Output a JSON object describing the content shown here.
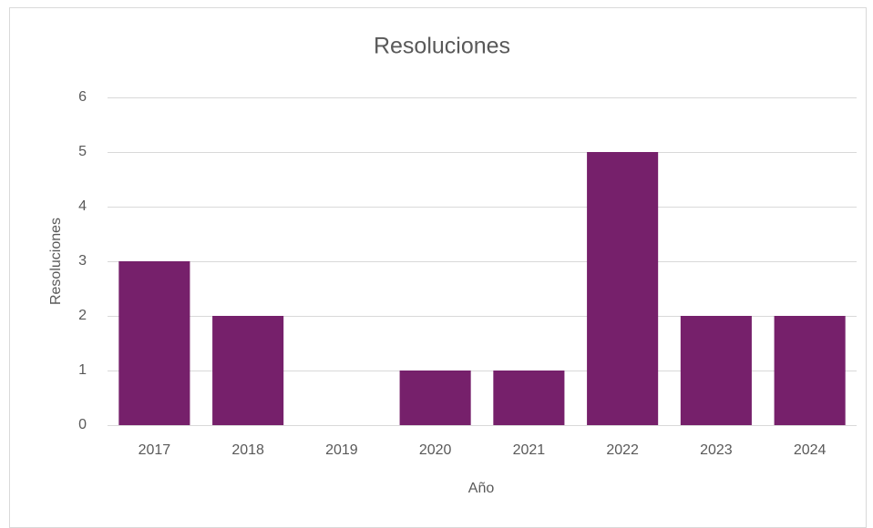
{
  "chart_data": {
    "type": "bar",
    "title": "Resoluciones",
    "categories": [
      "2017",
      "2018",
      "2019",
      "2020",
      "2021",
      "2022",
      "2023",
      "2024"
    ],
    "values": [
      3,
      2,
      0,
      1,
      1,
      5,
      2,
      2
    ],
    "color": "#76206b",
    "ylim": [
      0,
      6
    ],
    "yticks": [
      0,
      1,
      2,
      3,
      4,
      5,
      6
    ],
    "grid": true,
    "x_label": "Año",
    "y_label": "Resoluciones"
  }
}
